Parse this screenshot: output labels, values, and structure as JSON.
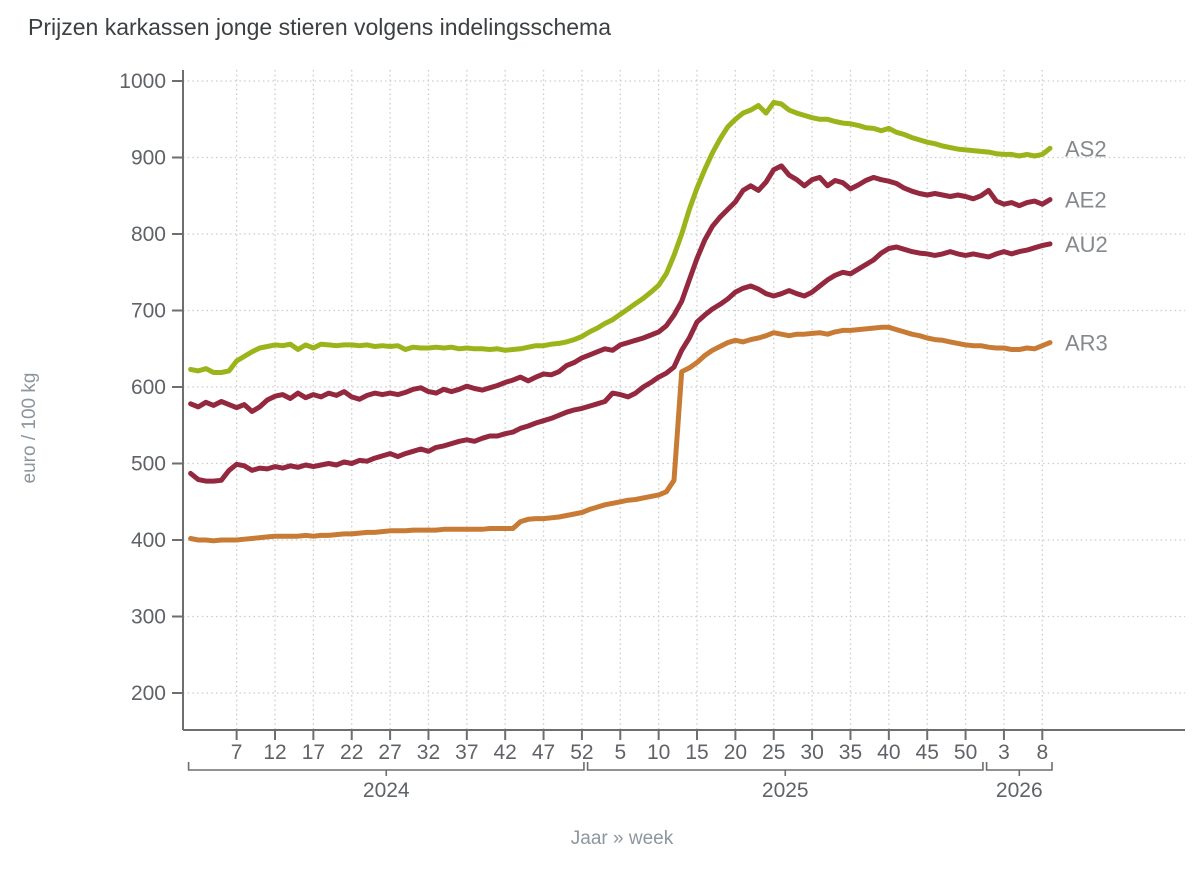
{
  "chart_data": {
    "type": "line",
    "title": "Prijzen karkassen jonge stieren volgens indelingsschema",
    "ylabel": "euro / 100 kg",
    "xlabel": "Jaar » week",
    "ylim": [
      200,
      1000
    ],
    "yticks": [
      200,
      300,
      400,
      500,
      600,
      700,
      800,
      900,
      1000
    ],
    "grid": true,
    "legend_position": "right-end-of-lines",
    "colors": {
      "axis": "#6e6e6e",
      "grid": "#cbcbcb",
      "title_text": "#3c4043",
      "tick_text": "#5f6368",
      "axis_title_text": "#8d959e",
      "series_label_text": "#85898d"
    },
    "x_years": [
      {
        "year": "2024",
        "weeks": 52,
        "tick_weeks": [
          7,
          12,
          17,
          22,
          27,
          32,
          37,
          42,
          47,
          52
        ]
      },
      {
        "year": "2025",
        "weeks": 52,
        "tick_weeks": [
          5,
          10,
          15,
          20,
          25,
          30,
          35,
          40,
          45,
          50
        ]
      },
      {
        "year": "2026",
        "weeks": 9,
        "tick_weeks": [
          3,
          8
        ]
      }
    ],
    "series": [
      {
        "name": "AS2",
        "color": "#9cb41a",
        "values": [
          623,
          621,
          624,
          619,
          619,
          621,
          634,
          640,
          646,
          651,
          653,
          655,
          654,
          656,
          649,
          655,
          651,
          656,
          655,
          654,
          655,
          655,
          654,
          655,
          653,
          654,
          653,
          654,
          649,
          652,
          651,
          651,
          652,
          651,
          652,
          650,
          651,
          650,
          650,
          649,
          650,
          648,
          649,
          650,
          652,
          654,
          654,
          656,
          657,
          659,
          662,
          666,
          672,
          677,
          683,
          688,
          695,
          702,
          709,
          716,
          724,
          733,
          748,
          772,
          800,
          832,
          860,
          884,
          906,
          924,
          940,
          950,
          958,
          962,
          968,
          958,
          972,
          970,
          962,
          958,
          955,
          952,
          950,
          950,
          947,
          945,
          944,
          942,
          939,
          938,
          935,
          938,
          933,
          930,
          926,
          923,
          920,
          918,
          915,
          913,
          911,
          910,
          909,
          908,
          907,
          905,
          904,
          904,
          902,
          904,
          902,
          904,
          912
        ]
      },
      {
        "name": "AE2",
        "color": "#94283e",
        "values": [
          578,
          574,
          580,
          576,
          581,
          577,
          573,
          577,
          568,
          574,
          583,
          588,
          590,
          585,
          592,
          586,
          590,
          587,
          592,
          589,
          594,
          587,
          584,
          589,
          592,
          590,
          592,
          590,
          593,
          597,
          599,
          594,
          592,
          597,
          594,
          597,
          601,
          598,
          596,
          599,
          602,
          606,
          609,
          613,
          608,
          613,
          617,
          616,
          620,
          628,
          632,
          638,
          642,
          646,
          650,
          648,
          655,
          658,
          661,
          664,
          668,
          672,
          680,
          694,
          712,
          740,
          768,
          792,
          810,
          822,
          832,
          842,
          857,
          863,
          857,
          868,
          884,
          889,
          877,
          871,
          863,
          871,
          874,
          863,
          870,
          867,
          859,
          864,
          870,
          874,
          871,
          869,
          866,
          860,
          856,
          853,
          851,
          853,
          851,
          849,
          851,
          849,
          846,
          850,
          857,
          843,
          839,
          841,
          837,
          841,
          843,
          839,
          845
        ]
      },
      {
        "name": "AU2",
        "color": "#94283e",
        "values": [
          487,
          479,
          477,
          477,
          478,
          491,
          499,
          497,
          491,
          494,
          493,
          496,
          494,
          497,
          495,
          498,
          496,
          498,
          500,
          498,
          502,
          500,
          504,
          503,
          507,
          510,
          513,
          509,
          513,
          516,
          519,
          516,
          521,
          523,
          526,
          529,
          531,
          529,
          533,
          536,
          536,
          539,
          541,
          546,
          549,
          553,
          556,
          559,
          563,
          567,
          570,
          572,
          575,
          578,
          581,
          592,
          590,
          587,
          592,
          600,
          606,
          613,
          618,
          626,
          648,
          664,
          685,
          694,
          702,
          708,
          715,
          724,
          729,
          732,
          728,
          722,
          719,
          722,
          726,
          722,
          719,
          724,
          732,
          740,
          746,
          750,
          748,
          754,
          760,
          766,
          775,
          781,
          783,
          780,
          777,
          775,
          774,
          772,
          774,
          777,
          774,
          772,
          774,
          772,
          770,
          774,
          777,
          774,
          777,
          779,
          782,
          785,
          787
        ]
      },
      {
        "name": "AR3",
        "color": "#c87b34",
        "values": [
          402,
          400,
          400,
          399,
          400,
          400,
          400,
          401,
          402,
          403,
          404,
          405,
          405,
          405,
          405,
          406,
          405,
          406,
          406,
          407,
          408,
          408,
          409,
          410,
          410,
          411,
          412,
          412,
          412,
          413,
          413,
          413,
          413,
          414,
          414,
          414,
          414,
          414,
          414,
          415,
          415,
          415,
          415,
          424,
          427,
          428,
          428,
          429,
          430,
          432,
          434,
          436,
          440,
          443,
          446,
          448,
          450,
          452,
          453,
          455,
          457,
          459,
          463,
          478,
          620,
          625,
          632,
          641,
          648,
          653,
          658,
          661,
          659,
          662,
          664,
          667,
          671,
          669,
          667,
          669,
          669,
          670,
          671,
          669,
          672,
          674,
          674,
          675,
          676,
          677,
          678,
          678,
          675,
          672,
          669,
          667,
          664,
          662,
          661,
          659,
          657,
          655,
          654,
          654,
          652,
          651,
          651,
          649,
          649,
          651,
          650,
          654,
          658
        ]
      }
    ]
  }
}
